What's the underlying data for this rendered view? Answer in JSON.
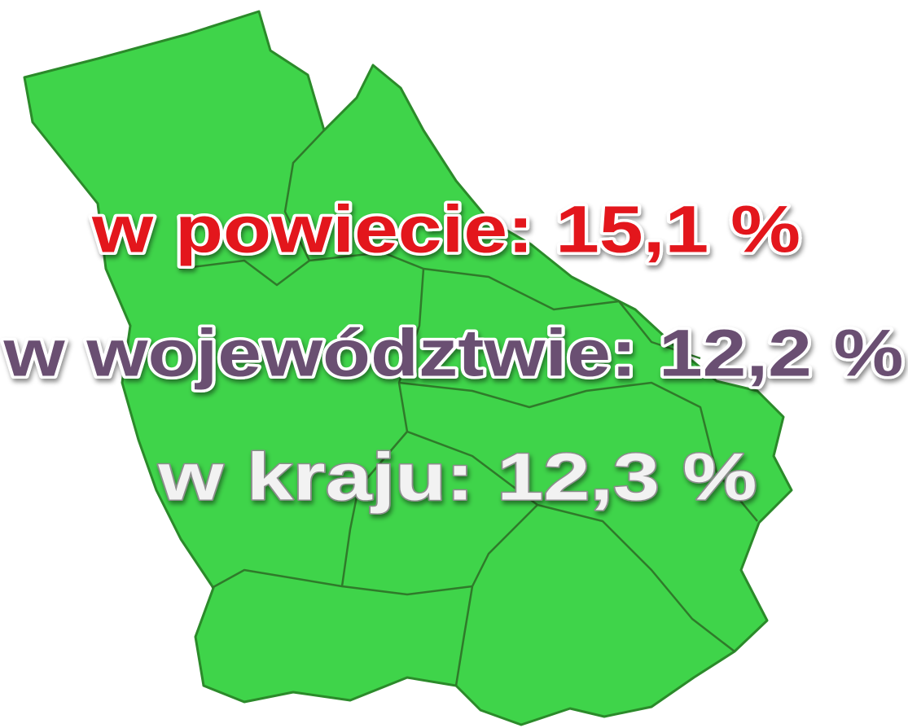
{
  "lines": [
    {
      "text": "w powiecie: 15,1 %"
    },
    {
      "text": "w województwie: 12,2 %"
    },
    {
      "text": "w kraju: 12,3 %"
    }
  ]
}
